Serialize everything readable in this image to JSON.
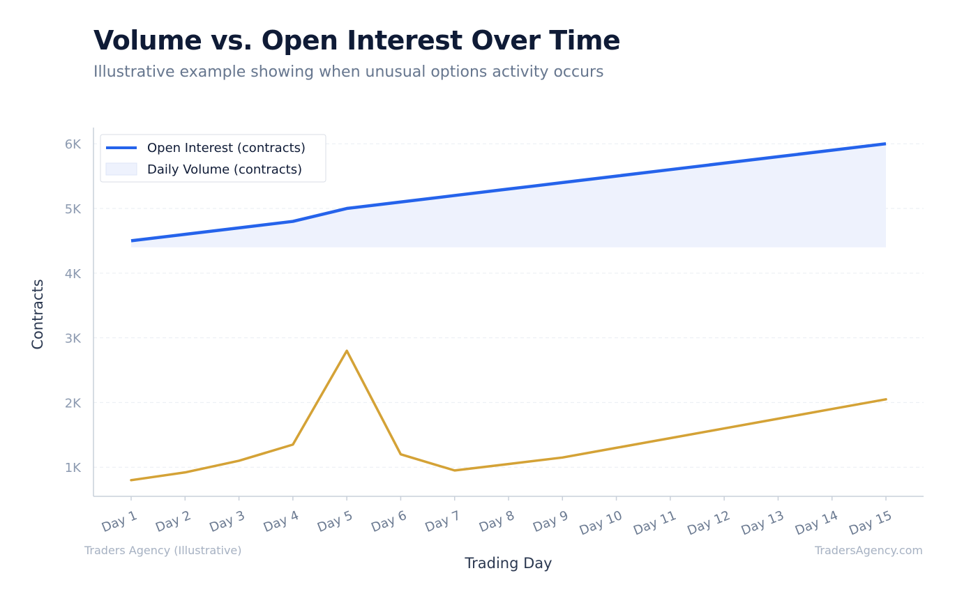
{
  "header": {
    "title": "Volume vs. Open Interest Over Time",
    "subtitle": "Illustrative example showing when unusual options activity occurs"
  },
  "footer": {
    "left": "Traders Agency (Illustrative)",
    "right": "TradersAgency.com"
  },
  "colors": {
    "open_interest": "#2563eb",
    "volume_fill": "#eef2fd",
    "volume_line": "#d4a236",
    "grid": "#e9edf2",
    "axis": "#c8d0da"
  },
  "chart_data": {
    "type": "line",
    "title": "Volume vs. Open Interest Over Time",
    "subtitle": "Illustrative example showing when unusual options activity occurs",
    "xlabel": "Trading Day",
    "ylabel": "Contracts",
    "categories": [
      "Day 1",
      "Day 2",
      "Day 3",
      "Day 4",
      "Day 5",
      "Day 6",
      "Day 7",
      "Day 8",
      "Day 9",
      "Day 10",
      "Day 11",
      "Day 12",
      "Day 13",
      "Day 14",
      "Day 15"
    ],
    "series": [
      {
        "name": "Open Interest (contracts)",
        "values": [
          4500,
          4600,
          4700,
          4800,
          5000,
          5100,
          5200,
          5300,
          5400,
          5500,
          5600,
          5700,
          5800,
          5900,
          6000
        ],
        "fill_base": 4400
      },
      {
        "name": "Daily Volume (contracts)",
        "values": [
          800,
          920,
          1100,
          1350,
          2800,
          1200,
          950,
          1050,
          1150,
          1300,
          1450,
          1600,
          1750,
          1900,
          2050
        ]
      }
    ],
    "yticks": [
      1000,
      2000,
      3000,
      4000,
      5000,
      6000
    ],
    "ytick_labels": [
      "1K",
      "2K",
      "3K",
      "4K",
      "5K",
      "6K"
    ],
    "ylim": [
      550,
      6250
    ],
    "grid": true,
    "legend_position": "top-left"
  }
}
